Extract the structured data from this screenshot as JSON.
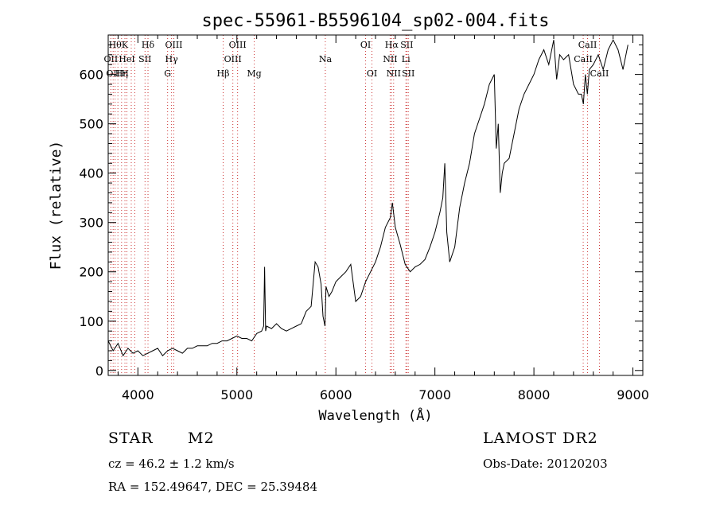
{
  "chart_data": {
    "type": "line",
    "title": "spec-55961-B5596104_sp02-004.fits",
    "xlabel": "Wavelength (Å)",
    "ylabel": "Flux (relative)",
    "xlim": [
      3700,
      9100
    ],
    "ylim": [
      -10,
      680
    ],
    "xticks": [
      4000,
      5000,
      6000,
      7000,
      8000,
      9000
    ],
    "yticks": [
      0,
      100,
      200,
      300,
      400,
      500,
      600
    ],
    "grid": false,
    "series": [
      {
        "x": [
          3700,
          3750,
          3800,
          3850,
          3900,
          3950,
          4000,
          4050,
          4100,
          4150,
          4200,
          4250,
          4300,
          4350,
          4400,
          4450,
          4500,
          4550,
          4600,
          4650,
          4700,
          4750,
          4800,
          4850,
          4900,
          4950,
          5000,
          5050,
          5100,
          5150,
          5200,
          5250,
          5270,
          5280,
          5290,
          5300,
          5350,
          5400,
          5450,
          5500,
          5550,
          5600,
          5650,
          5700,
          5750,
          5790,
          5820,
          5850,
          5870,
          5890,
          5900,
          5930,
          5960,
          6000,
          6050,
          6100,
          6150,
          6200,
          6250,
          6300,
          6350,
          6400,
          6450,
          6500,
          6550,
          6570,
          6600,
          6650,
          6700,
          6750,
          6800,
          6850,
          6900,
          6950,
          7000,
          7050,
          7080,
          7100,
          7120,
          7150,
          7200,
          7250,
          7300,
          7350,
          7400,
          7450,
          7500,
          7550,
          7600,
          7620,
          7640,
          7660,
          7680,
          7700,
          7750,
          7800,
          7850,
          7900,
          7950,
          8000,
          8050,
          8100,
          8150,
          8200,
          8230,
          8260,
          8300,
          8350,
          8400,
          8450,
          8480,
          8500,
          8520,
          8540,
          8560,
          8600,
          8650,
          8700,
          8750,
          8800,
          8850,
          8900,
          8950
        ],
        "values": [
          60,
          40,
          55,
          30,
          45,
          35,
          40,
          30,
          35,
          40,
          45,
          30,
          40,
          45,
          40,
          35,
          45,
          45,
          50,
          50,
          50,
          55,
          55,
          60,
          60,
          65,
          70,
          65,
          65,
          60,
          75,
          80,
          90,
          210,
          80,
          90,
          85,
          95,
          85,
          80,
          85,
          90,
          95,
          120,
          130,
          220,
          210,
          175,
          110,
          90,
          170,
          150,
          160,
          180,
          190,
          200,
          215,
          140,
          150,
          180,
          200,
          220,
          250,
          290,
          310,
          340,
          290,
          255,
          215,
          200,
          210,
          215,
          225,
          250,
          280,
          320,
          350,
          420,
          280,
          220,
          250,
          330,
          380,
          420,
          480,
          510,
          540,
          580,
          600,
          450,
          500,
          360,
          400,
          420,
          430,
          480,
          530,
          560,
          580,
          600,
          630,
          650,
          620,
          670,
          590,
          640,
          630,
          640,
          580,
          560,
          560,
          540,
          600,
          560,
          610,
          620,
          640,
          610,
          650,
          670,
          650,
          610,
          660
        ]
      }
    ],
    "lines": [
      {
        "wl": 3727,
        "labels": [
          "OII"
        ],
        "row": 1,
        "color": "#cc3333"
      },
      {
        "wl": 3750,
        "labels": [
          "OII"
        ],
        "row": 2,
        "color": "#cc3333"
      },
      {
        "wl": 3770,
        "labels": [
          "Hθ"
        ],
        "row": 0,
        "color": "#cc3333"
      },
      {
        "wl": 3798,
        "labels": [],
        "row": 0,
        "color": "#cc3333"
      },
      {
        "wl": 3835,
        "labels": [
          "Hη"
        ],
        "row": 2,
        "color": "#cc3333"
      },
      {
        "wl": 3869,
        "labels": [
          "K",
          "H"
        ],
        "row": 0,
        "color": "#cc3333"
      },
      {
        "wl": 3889,
        "labels": [
          "HeI"
        ],
        "row": 1,
        "color": "#cc3333"
      },
      {
        "wl": 3933,
        "labels": [],
        "row": 0,
        "color": "#cc3333"
      },
      {
        "wl": 3968,
        "labels": [],
        "row": 0,
        "color": "#cc3333"
      },
      {
        "wl": 4072,
        "labels": [
          "SII"
        ],
        "row": 1,
        "color": "#cc3333"
      },
      {
        "wl": 4102,
        "labels": [
          "Hδ"
        ],
        "row": 0,
        "color": "#cc3333"
      },
      {
        "wl": 4300,
        "labels": [
          "G"
        ],
        "row": 2,
        "color": "#cc3333"
      },
      {
        "wl": 4340,
        "labels": [
          "Hγ"
        ],
        "row": 1,
        "color": "#cc3333"
      },
      {
        "wl": 4363,
        "labels": [
          "OIII"
        ],
        "row": 0,
        "color": "#cc3333"
      },
      {
        "wl": 4861,
        "labels": [
          "Hβ"
        ],
        "row": 2,
        "color": "#cc3333"
      },
      {
        "wl": 4959,
        "labels": [
          "OIII"
        ],
        "row": 1,
        "color": "#cc3333"
      },
      {
        "wl": 5007,
        "labels": [
          "OIII"
        ],
        "row": 0,
        "color": "#cc3333"
      },
      {
        "wl": 5175,
        "labels": [
          "Mg"
        ],
        "row": 2,
        "color": "#cc3333"
      },
      {
        "wl": 5893,
        "labels": [
          "Na"
        ],
        "row": 1,
        "color": "#cc3333"
      },
      {
        "wl": 6300,
        "labels": [
          "OI"
        ],
        "row": 0,
        "color": "#cc3333"
      },
      {
        "wl": 6364,
        "labels": [
          "OI"
        ],
        "row": 2,
        "color": "#cc3333"
      },
      {
        "wl": 6548,
        "labels": [
          "NII"
        ],
        "row": 1,
        "color": "#cc3333"
      },
      {
        "wl": 6563,
        "labels": [
          "Hα"
        ],
        "row": 0,
        "color": "#cc3333"
      },
      {
        "wl": 6583,
        "labels": [
          "NII"
        ],
        "row": 2,
        "color": "#cc3333"
      },
      {
        "wl": 6707,
        "labels": [
          "Li"
        ],
        "row": 1,
        "color": "#cc3333"
      },
      {
        "wl": 6716,
        "labels": [
          "SII"
        ],
        "row": 0,
        "color": "#cc3333"
      },
      {
        "wl": 6731,
        "labels": [
          "SII"
        ],
        "row": 2,
        "color": "#cc3333"
      },
      {
        "wl": 8498,
        "labels": [
          "CaII"
        ],
        "row": 1,
        "color": "#cc3333"
      },
      {
        "wl": 8542,
        "labels": [
          "CaII"
        ],
        "row": 0,
        "color": "#cc3333"
      },
      {
        "wl": 8662,
        "labels": [
          "CaII"
        ],
        "row": 2,
        "color": "#cc3333"
      }
    ]
  },
  "info": {
    "obj_class": "STAR",
    "obj_subclass": "M2",
    "survey": "LAMOST DR2",
    "cz": "cz = 46.2 ± 1.2 km/s",
    "obs_date": "Obs-Date: 20120203",
    "radec": "RA = 152.49647, DEC =  25.39484"
  }
}
